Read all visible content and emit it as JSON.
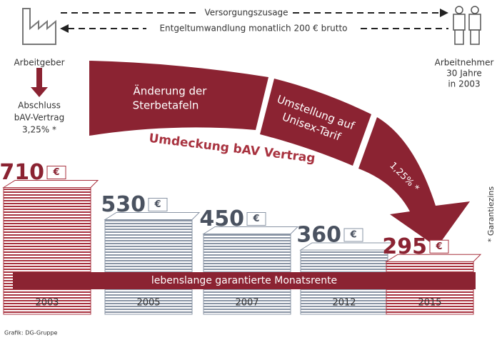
{
  "chart_data": {
    "type": "bar",
    "categories": [
      "2003",
      "2005",
      "2007",
      "2012",
      "2015"
    ],
    "values": [
      710,
      530,
      450,
      360,
      295
    ],
    "unit": "€",
    "colors": [
      "#a8323f",
      "#8a95a5",
      "#8a95a5",
      "#8a95a5",
      "#a8323f"
    ],
    "label_colors": [
      "#8b2332",
      "#4a5260",
      "#4a5260",
      "#4a5260",
      "#8b2332"
    ],
    "annotations": {
      "employer": "Arbeitgeber",
      "employee": [
        "Arbeitnehmer",
        "30 Jahre",
        "in 2003"
      ],
      "promise": "Versorgungszusage",
      "conversion": "Entgeltumwandlung monatlich 200 € brutto",
      "contract": [
        "Abschluss",
        "bAV-Vertrag",
        "3,25% *"
      ],
      "step1": [
        "Änderung der",
        "Sterbetafeln"
      ],
      "step2": [
        "Umstellung auf",
        "Unisex-Tarif"
      ],
      "step3": "1,25% *",
      "rebooking": "Umdeckung bAV Vertrag",
      "guarantee": "* Garantiezins",
      "pension": "lebenslange garantierte Monatsrente",
      "source": "Grafik: DG-Gruppe"
    }
  }
}
